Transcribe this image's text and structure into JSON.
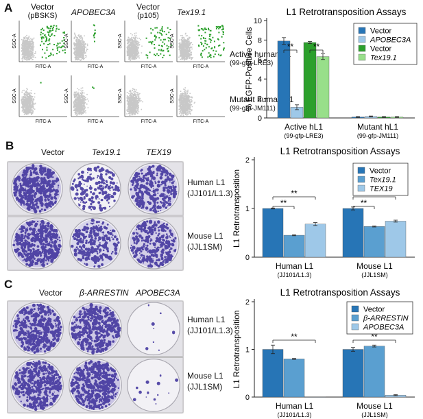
{
  "panels": [
    "A",
    "B",
    "C"
  ],
  "panelA": {
    "flow_columns": [
      {
        "line1": "Vector",
        "line2": "(pBSKS)",
        "italic": false
      },
      {
        "line1": "APOBEC3A",
        "line2": "",
        "italic": true
      },
      {
        "line1": "Vector",
        "line2": "(p105)",
        "italic": false
      },
      {
        "line1": "Tex19.1",
        "line2": "",
        "italic": true
      }
    ],
    "y_axis": "SSC-A",
    "x_axis": "FITC-A",
    "row_labels": [
      {
        "line1": "Active human L1",
        "line2": "(99-gfp-LRE3)"
      },
      {
        "line1": "Mutant human L1",
        "line2": "(99-gfp-JM111)"
      }
    ]
  },
  "panelB": {
    "plate_columns": [
      {
        "label": "Vector",
        "italic": false
      },
      {
        "label": "Tex19.1",
        "italic": true
      },
      {
        "label": "TEX19",
        "italic": true
      }
    ],
    "row_labels": [
      {
        "line1": "Human L1",
        "line2": "(JJ101/L1.3)"
      },
      {
        "line1": "Mouse L1",
        "line2": "(JJL1SM)"
      }
    ]
  },
  "panelC": {
    "plate_columns": [
      {
        "label": "Vector",
        "italic": false
      },
      {
        "label": "β-ARRESTIN",
        "italic": true
      },
      {
        "label": "APOBEC3A",
        "italic": true
      }
    ],
    "row_labels": [
      {
        "line1": "Human L1",
        "line2": "(JJ101/L1.3)"
      },
      {
        "line1": "Mouse L1",
        "line2": "(JJL1SM)"
      }
    ]
  },
  "chart_data": [
    {
      "type": "bar",
      "title": "L1 Retrotransposition Assays",
      "ylabel": "% EGFP-Positive Cells",
      "ylim": [
        0,
        10
      ],
      "yticks": [
        0,
        2,
        4,
        6,
        8,
        10
      ],
      "categories": [
        {
          "line1": "Active hL1",
          "line2": "(99-gfp-LRE3)"
        },
        {
          "line1": "Mutant hL1",
          "line2": "(99-gfp-JM111)"
        }
      ],
      "series": [
        {
          "name": "Vector",
          "italic": false,
          "color": "#2775b6",
          "values": [
            7.9,
            0.1
          ],
          "errors": [
            0.35,
            0.05
          ]
        },
        {
          "name": "APOBEC3A",
          "italic": true,
          "color": "#9ec8e8",
          "values": [
            1.1,
            0.15
          ],
          "errors": [
            0.25,
            0.05
          ]
        },
        {
          "name": "Vector",
          "italic": false,
          "color": "#2ca02c",
          "values": [
            7.75,
            0.1
          ],
          "errors": [
            0.1,
            0.05
          ]
        },
        {
          "name": "Tex19.1",
          "italic": true,
          "color": "#98df8a",
          "values": [
            6.3,
            0.1
          ],
          "errors": [
            0.3,
            0.05
          ]
        }
      ],
      "significance": [
        "**",
        "**"
      ]
    },
    {
      "type": "bar",
      "title": "L1 Retrotransposition Assays",
      "ylabel": "L1 Retrotransposition",
      "ylim": [
        0,
        2
      ],
      "yticks": [
        0,
        1,
        2
      ],
      "categories": [
        {
          "line1": "Human L1",
          "line2": "(JJ101/L1.3)"
        },
        {
          "line1": "Mouse L1",
          "line2": "(JJL1SM)"
        }
      ],
      "series": [
        {
          "name": "Vector",
          "italic": false,
          "color": "#2775b6",
          "values": [
            1.0,
            1.0
          ],
          "errors": [
            0.01,
            0.03
          ]
        },
        {
          "name": "Tex19.1",
          "italic": true,
          "color": "#5a9fd0",
          "values": [
            0.45,
            0.63
          ],
          "errors": [
            0.01,
            0.01
          ]
        },
        {
          "name": "TEX19",
          "italic": true,
          "color": "#9ec8e8",
          "values": [
            0.68,
            0.74
          ],
          "errors": [
            0.03,
            0.02
          ]
        }
      ],
      "significance": [
        "**",
        "**",
        "**",
        "*"
      ]
    },
    {
      "type": "bar",
      "title": "L1 Retrotransposition Assays",
      "ylabel": "L1 Retrotransposition",
      "ylim": [
        0,
        2
      ],
      "yticks": [
        0,
        1,
        2
      ],
      "categories": [
        {
          "line1": "Human L1",
          "line2": "(JJ101/L1.3)"
        },
        {
          "line1": "Mouse L1",
          "line2": "(JJL1SM)"
        }
      ],
      "series": [
        {
          "name": "Vector",
          "italic": false,
          "color": "#2775b6",
          "values": [
            1.0,
            1.0
          ],
          "errors": [
            0.09,
            0.04
          ]
        },
        {
          "name": "β-ARRESTIN",
          "italic": true,
          "color": "#5a9fd0",
          "values": [
            0.8,
            1.07
          ],
          "errors": [
            0.01,
            0.02
          ]
        },
        {
          "name": "APOBEC3A",
          "italic": true,
          "color": "#9ec8e8",
          "values": [
            0.0,
            0.04
          ],
          "errors": [
            0.0,
            0.01
          ]
        }
      ],
      "significance": [
        "**",
        "**"
      ]
    }
  ]
}
